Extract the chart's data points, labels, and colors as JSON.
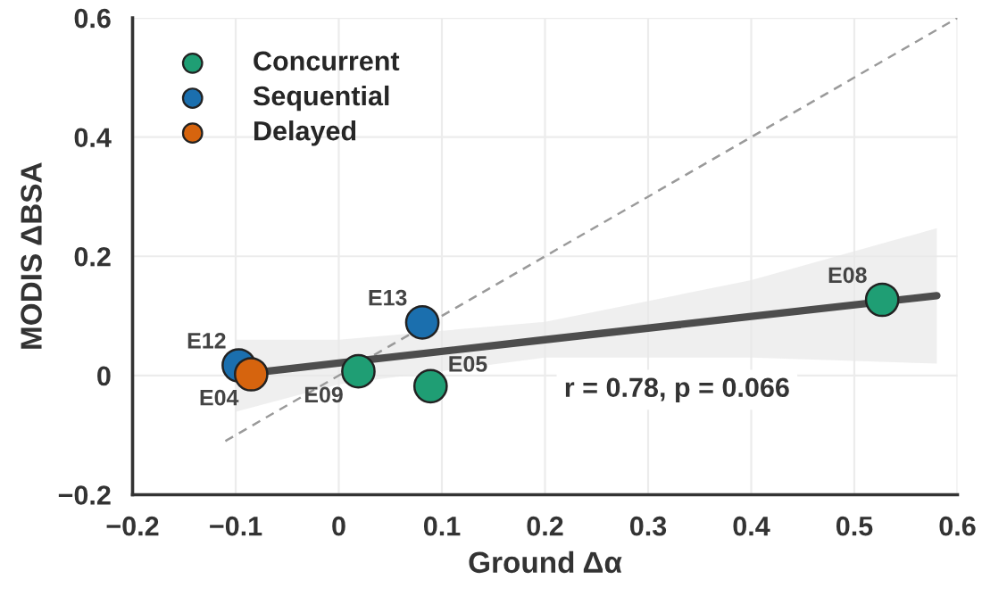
{
  "chart_data": {
    "type": "scatter",
    "xlabel": "Ground Δα",
    "ylabel": "MODIS ΔBSA",
    "xlim": [
      -0.2,
      0.6
    ],
    "ylim": [
      -0.2,
      0.6
    ],
    "xticks": [
      {
        "value": -0.2,
        "label": "−0.2"
      },
      {
        "value": -0.1,
        "label": "−0.1"
      },
      0,
      0.1,
      0.2,
      0.3,
      0.4,
      0.5,
      0.6
    ],
    "yticks": [
      {
        "value": -0.2,
        "label": "−0.2"
      },
      0,
      0.2,
      0.4,
      0.6
    ],
    "grid": true,
    "legend": "top left",
    "series": [
      {
        "name": "Concurrent",
        "marker": "circle",
        "color": "#1f9e74",
        "x": [
          0.019,
          0.089,
          0.527
        ],
        "values": [
          0.007,
          -0.018,
          0.127
        ]
      },
      {
        "name": "Sequential",
        "marker": "circle",
        "color": "#1b6fae",
        "x": [
          -0.097,
          0.081
        ],
        "values": [
          0.017,
          0.089
        ]
      },
      {
        "name": "Delayed",
        "marker": "circle",
        "color": "#d6640e",
        "x": [
          -0.085
        ],
        "values": [
          0.002
        ]
      },
      {
        "type": "line",
        "color": "#4d4d4d",
        "line_style": "solid",
        "x": [
          -0.1,
          0.0,
          0.2,
          0.4,
          0.58
        ],
        "values": [
          0.001,
          0.021,
          0.06,
          0.099,
          0.134
        ],
        "lower": [
          -0.061,
          -0.015,
          0.03,
          0.03,
          0.02
        ],
        "upper": [
          0.06,
          0.06,
          0.09,
          0.16,
          0.247
        ]
      },
      {
        "type": "line",
        "color": "#9a9a9a",
        "line_style": "dashed",
        "x": [
          -0.11,
          0.6
        ],
        "values": [
          -0.11,
          0.6
        ]
      }
    ],
    "annotations": [
      {
        "text": "E12",
        "x": -0.097,
        "y": 0.017
      },
      {
        "text": "E04",
        "x": -0.085,
        "y": 0.002
      },
      {
        "text": "E09",
        "x": 0.019,
        "y": 0.007
      },
      {
        "text": "E13",
        "x": 0.081,
        "y": 0.089
      },
      {
        "text": "E05",
        "x": 0.089,
        "y": -0.018
      },
      {
        "text": "E08",
        "x": 0.527,
        "y": 0.127
      },
      "r = 0.78, p = 0.066"
    ]
  }
}
